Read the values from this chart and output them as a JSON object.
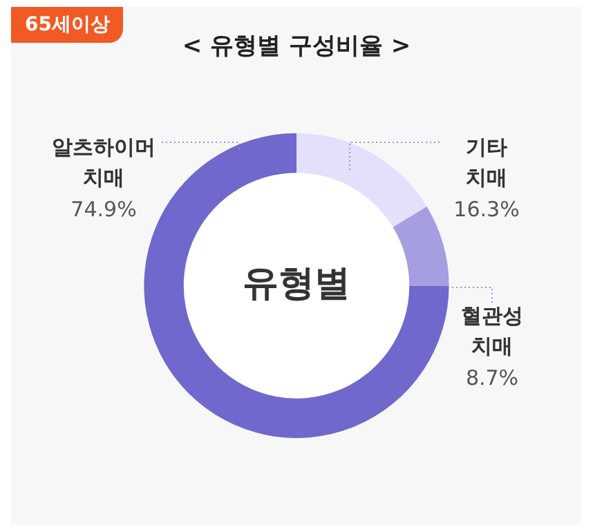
{
  "chart_data": {
    "type": "donut",
    "title": "< 유형별 구성비율 >",
    "categories": [
      "기타 치매",
      "혈관성 치매",
      "알츠하이머 치매"
    ],
    "values": [
      16.3,
      8.7,
      74.9
    ],
    "colors": [
      "#e2e0fb",
      "#a59ee0",
      "#7068cc"
    ],
    "value_labels": [
      "16.3%",
      "8.7%",
      "74.9%"
    ],
    "annotations": [
      "65세이상",
      "유형별"
    ],
    "legend": false
  }
}
